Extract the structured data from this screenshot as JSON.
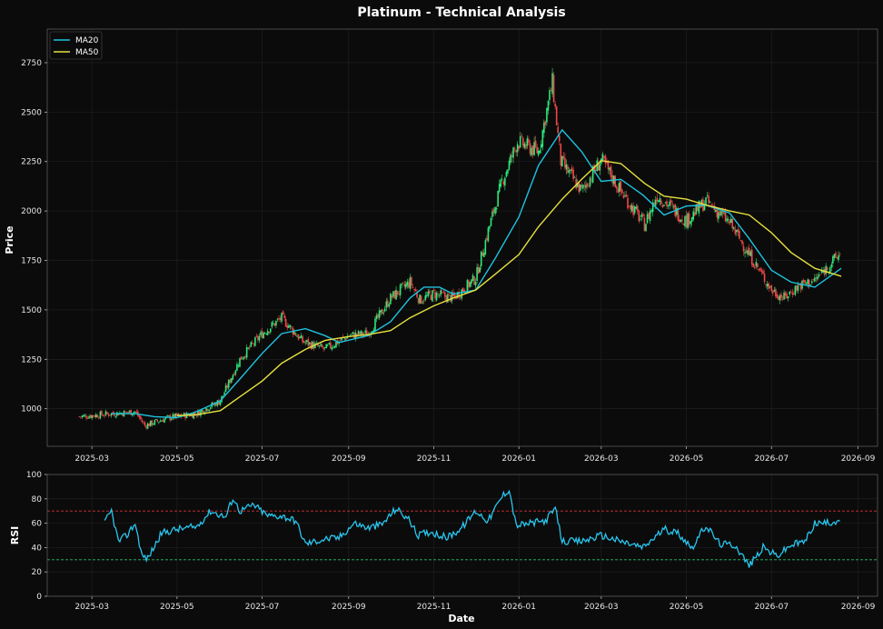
{
  "title": "Platinum - Technical Analysis",
  "colors": {
    "background": "#0b0b0b",
    "up": "#2ee879",
    "down": "#f04848",
    "ma20": "#1ec3e0",
    "ma50": "#e6e040",
    "rsi": "#29c6ef",
    "overbought": "#d83434",
    "oversold": "#26c06a"
  },
  "chart_data": [
    {
      "type": "candlestick",
      "title": "Platinum - Technical Analysis",
      "ylabel": "Price",
      "xlabel": "",
      "xlim": [
        "2025-01-28",
        "2026-09-15"
      ],
      "ylim": [
        810,
        2920
      ],
      "grid": true,
      "legend_position": "top-left",
      "x_ticks": [
        "2025-03",
        "2025-05",
        "2025-07",
        "2025-09",
        "2025-11",
        "2026-01",
        "2026-03",
        "2026-05",
        "2026-07",
        "2026-09"
      ],
      "y_ticks": [
        1000,
        1250,
        1500,
        1750,
        2000,
        2250,
        2500,
        2750
      ],
      "price_path": [
        [
          "2025-02-20",
          960
        ],
        [
          "2025-03-15",
          975
        ],
        [
          "2025-04-01",
          985
        ],
        [
          "2025-04-08",
          915
        ],
        [
          "2025-04-25",
          955
        ],
        [
          "2025-05-15",
          975
        ],
        [
          "2025-06-01",
          1040
        ],
        [
          "2025-06-15",
          1250
        ],
        [
          "2025-07-01",
          1380
        ],
        [
          "2025-07-15",
          1460
        ],
        [
          "2025-07-30",
          1340
        ],
        [
          "2025-08-15",
          1300
        ],
        [
          "2025-09-01",
          1370
        ],
        [
          "2025-09-15",
          1380
        ],
        [
          "2025-10-01",
          1560
        ],
        [
          "2025-10-15",
          1640
        ],
        [
          "2025-10-22",
          1550
        ],
        [
          "2025-11-01",
          1580
        ],
        [
          "2025-11-15",
          1560
        ],
        [
          "2025-12-01",
          1660
        ],
        [
          "2025-12-10",
          1900
        ],
        [
          "2025-12-20",
          2150
        ],
        [
          "2025-12-31",
          2350
        ],
        [
          "2026-01-15",
          2300
        ],
        [
          "2026-01-25",
          2650
        ],
        [
          "2026-01-31",
          2250
        ],
        [
          "2026-02-15",
          2100
        ],
        [
          "2026-03-01",
          2260
        ],
        [
          "2026-03-15",
          2100
        ],
        [
          "2026-04-01",
          1930
        ],
        [
          "2026-04-10",
          2080
        ],
        [
          "2026-05-01",
          1950
        ],
        [
          "2026-05-15",
          2050
        ],
        [
          "2026-06-01",
          1940
        ],
        [
          "2026-06-15",
          1780
        ],
        [
          "2026-07-01",
          1600
        ],
        [
          "2026-07-10",
          1560
        ],
        [
          "2026-07-20",
          1620
        ],
        [
          "2026-08-01",
          1650
        ],
        [
          "2026-08-20",
          1790
        ]
      ],
      "series": [
        {
          "name": "MA20",
          "points": [
            [
              "2025-03-15",
              975
            ],
            [
              "2025-04-01",
              975
            ],
            [
              "2025-04-15",
              960
            ],
            [
              "2025-05-01",
              955
            ],
            [
              "2025-05-15",
              985
            ],
            [
              "2025-06-01",
              1040
            ],
            [
              "2025-06-15",
              1150
            ],
            [
              "2025-07-01",
              1280
            ],
            [
              "2025-07-15",
              1380
            ],
            [
              "2025-08-01",
              1405
            ],
            [
              "2025-08-15",
              1370
            ],
            [
              "2025-08-25",
              1335
            ],
            [
              "2025-09-15",
              1370
            ],
            [
              "2025-10-01",
              1440
            ],
            [
              "2025-10-15",
              1560
            ],
            [
              "2025-10-25",
              1615
            ],
            [
              "2025-11-05",
              1615
            ],
            [
              "2025-11-15",
              1580
            ],
            [
              "2025-12-01",
              1600
            ],
            [
              "2025-12-15",
              1760
            ],
            [
              "2026-01-01",
              1970
            ],
            [
              "2026-01-15",
              2230
            ],
            [
              "2026-02-01",
              2410
            ],
            [
              "2026-02-15",
              2300
            ],
            [
              "2026-03-01",
              2150
            ],
            [
              "2026-03-15",
              2160
            ],
            [
              "2026-03-31",
              2080
            ],
            [
              "2026-04-15",
              1980
            ],
            [
              "2026-05-01",
              2025
            ],
            [
              "2026-05-15",
              2030
            ],
            [
              "2026-06-01",
              1990
            ],
            [
              "2026-06-15",
              1860
            ],
            [
              "2026-07-01",
              1700
            ],
            [
              "2026-07-15",
              1640
            ],
            [
              "2026-08-01",
              1615
            ],
            [
              "2026-08-20",
              1710
            ]
          ]
        },
        {
          "name": "MA50",
          "points": [
            [
              "2025-05-01",
              965
            ],
            [
              "2025-05-15",
              970
            ],
            [
              "2025-06-01",
              990
            ],
            [
              "2025-06-15",
              1060
            ],
            [
              "2025-07-01",
              1140
            ],
            [
              "2025-07-15",
              1230
            ],
            [
              "2025-08-01",
              1300
            ],
            [
              "2025-08-15",
              1345
            ],
            [
              "2025-09-01",
              1365
            ],
            [
              "2025-09-15",
              1375
            ],
            [
              "2025-10-01",
              1395
            ],
            [
              "2025-10-15",
              1460
            ],
            [
              "2025-11-01",
              1520
            ],
            [
              "2025-11-15",
              1560
            ],
            [
              "2025-12-01",
              1600
            ],
            [
              "2025-12-15",
              1680
            ],
            [
              "2026-01-01",
              1780
            ],
            [
              "2026-01-15",
              1920
            ],
            [
              "2026-02-01",
              2060
            ],
            [
              "2026-02-15",
              2160
            ],
            [
              "2026-03-01",
              2255
            ],
            [
              "2026-03-15",
              2240
            ],
            [
              "2026-04-01",
              2140
            ],
            [
              "2026-04-15",
              2075
            ],
            [
              "2026-05-01",
              2060
            ],
            [
              "2026-05-15",
              2030
            ],
            [
              "2026-06-01",
              2000
            ],
            [
              "2026-06-15",
              1980
            ],
            [
              "2026-07-01",
              1890
            ],
            [
              "2026-07-15",
              1790
            ],
            [
              "2026-08-01",
              1710
            ],
            [
              "2026-08-20",
              1670
            ]
          ]
        }
      ]
    },
    {
      "type": "line",
      "ylabel": "RSI",
      "xlabel": "Date",
      "xlim": [
        "2025-01-28",
        "2026-09-15"
      ],
      "ylim": [
        0,
        100
      ],
      "grid": true,
      "x_ticks": [
        "2025-03",
        "2025-05",
        "2025-07",
        "2025-09",
        "2025-11",
        "2026-01",
        "2026-03",
        "2026-05",
        "2026-07",
        "2026-09"
      ],
      "y_ticks": [
        0,
        20,
        40,
        60,
        80,
        100
      ],
      "reference_lines": [
        70,
        30
      ],
      "series": [
        {
          "name": "RSI",
          "points": [
            [
              "2025-03-10",
              60
            ],
            [
              "2025-03-15",
              70
            ],
            [
              "2025-03-20",
              45
            ],
            [
              "2025-03-26",
              50
            ],
            [
              "2025-04-01",
              60
            ],
            [
              "2025-04-06",
              33
            ],
            [
              "2025-04-10",
              31
            ],
            [
              "2025-04-20",
              52
            ],
            [
              "2025-05-01",
              55
            ],
            [
              "2025-05-15",
              57
            ],
            [
              "2025-05-25",
              70
            ],
            [
              "2025-06-05",
              65
            ],
            [
              "2025-06-10",
              81
            ],
            [
              "2025-06-15",
              70
            ],
            [
              "2025-06-25",
              75
            ],
            [
              "2025-07-05",
              66
            ],
            [
              "2025-07-15",
              66
            ],
            [
              "2025-07-25",
              62
            ],
            [
              "2025-08-01",
              43
            ],
            [
              "2025-08-15",
              47
            ],
            [
              "2025-08-25",
              48
            ],
            [
              "2025-09-05",
              60
            ],
            [
              "2025-09-15",
              56
            ],
            [
              "2025-09-25",
              59
            ],
            [
              "2025-10-05",
              72
            ],
            [
              "2025-10-15",
              62
            ],
            [
              "2025-10-20",
              50
            ],
            [
              "2025-10-30",
              53
            ],
            [
              "2025-11-10",
              48
            ],
            [
              "2025-11-20",
              55
            ],
            [
              "2025-12-01",
              70
            ],
            [
              "2025-12-10",
              62
            ],
            [
              "2025-12-20",
              82
            ],
            [
              "2025-12-25",
              88
            ],
            [
              "2025-12-30",
              58
            ],
            [
              "2026-01-10",
              60
            ],
            [
              "2026-01-20",
              62
            ],
            [
              "2026-01-27",
              72
            ],
            [
              "2026-02-01",
              45
            ],
            [
              "2026-02-15",
              45
            ],
            [
              "2026-03-01",
              50
            ],
            [
              "2026-03-15",
              45
            ],
            [
              "2026-03-31",
              40
            ],
            [
              "2026-04-15",
              55
            ],
            [
              "2026-04-25",
              52
            ],
            [
              "2026-05-05",
              40
            ],
            [
              "2026-05-15",
              58
            ],
            [
              "2026-05-25",
              43
            ],
            [
              "2026-06-05",
              42
            ],
            [
              "2026-06-15",
              25
            ],
            [
              "2026-06-25",
              40
            ],
            [
              "2026-07-05",
              33
            ],
            [
              "2026-07-15",
              42
            ],
            [
              "2026-07-25",
              45
            ],
            [
              "2026-08-01",
              60
            ],
            [
              "2026-08-10",
              60
            ],
            [
              "2026-08-20",
              63
            ]
          ]
        }
      ]
    }
  ]
}
